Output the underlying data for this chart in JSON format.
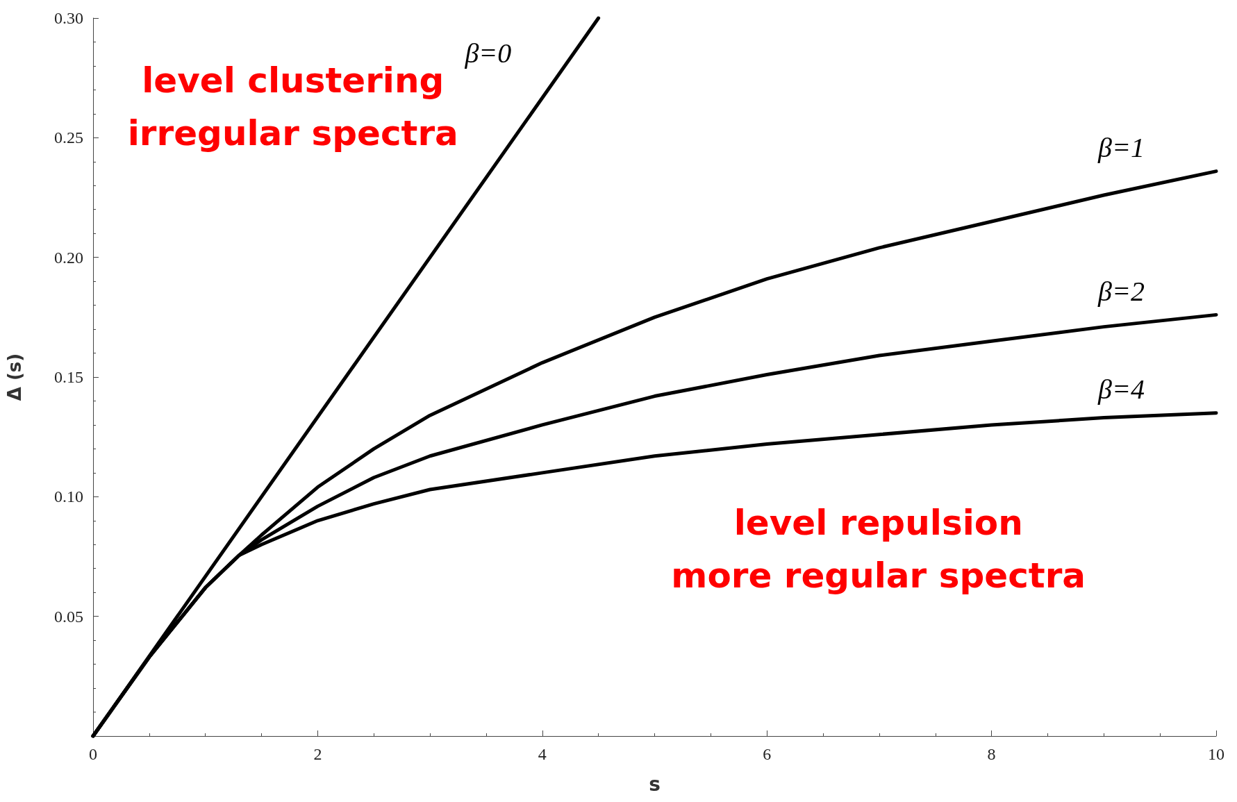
{
  "chart_data": {
    "type": "line",
    "xlabel": "s",
    "ylabel": "Δ (s)",
    "xlim": [
      0,
      10
    ],
    "xticks": [
      0,
      2,
      4,
      6,
      8,
      10
    ],
    "ylim": [
      0,
      0.3
    ],
    "yticks": [
      {
        "value": 0.05,
        "label": "0.05"
      },
      {
        "value": 0.1,
        "label": "0.10"
      },
      {
        "value": 0.15,
        "label": "0.15"
      },
      {
        "value": 0.2,
        "label": "0.20"
      },
      {
        "value": 0.25,
        "label": "0.25"
      },
      {
        "value": 0.3,
        "label": "0.30"
      }
    ],
    "grid": false,
    "marker": "none",
    "line_style": "solid",
    "series": [
      {
        "name": "β=0",
        "color": "#000000",
        "x": [
          0,
          4.5
        ],
        "values": [
          0,
          0.3
        ]
      },
      {
        "name": "β=1",
        "color": "#000000",
        "x": [
          0,
          0.5,
          1,
          1.3,
          1.5,
          2,
          2.5,
          3,
          4,
          5,
          6,
          7,
          8,
          9,
          10
        ],
        "values": [
          0,
          0.033,
          0.062,
          0.0755,
          0.084,
          0.104,
          0.12,
          0.134,
          0.156,
          0.175,
          0.191,
          0.204,
          0.215,
          0.226,
          0.236
        ]
      },
      {
        "name": "β=2",
        "color": "#000000",
        "x": [
          0,
          0.5,
          1,
          1.3,
          1.5,
          2,
          2.5,
          3,
          4,
          5,
          6,
          7,
          8,
          9,
          10
        ],
        "values": [
          0,
          0.033,
          0.062,
          0.0755,
          0.082,
          0.096,
          0.108,
          0.117,
          0.13,
          0.142,
          0.151,
          0.159,
          0.165,
          0.171,
          0.176
        ]
      },
      {
        "name": "β=4",
        "color": "#000000",
        "x": [
          0,
          0.5,
          1,
          1.3,
          1.5,
          2,
          2.5,
          3,
          4,
          5,
          6,
          7,
          8,
          9,
          10
        ],
        "values": [
          0,
          0.033,
          0.062,
          0.0755,
          0.08,
          0.09,
          0.097,
          0.103,
          0.11,
          0.117,
          0.122,
          0.126,
          0.13,
          0.133,
          0.135
        ]
      }
    ],
    "annotations": [
      "level clustering\nirregular spectra",
      "level repulsion\nmore regular spectra"
    ]
  }
}
